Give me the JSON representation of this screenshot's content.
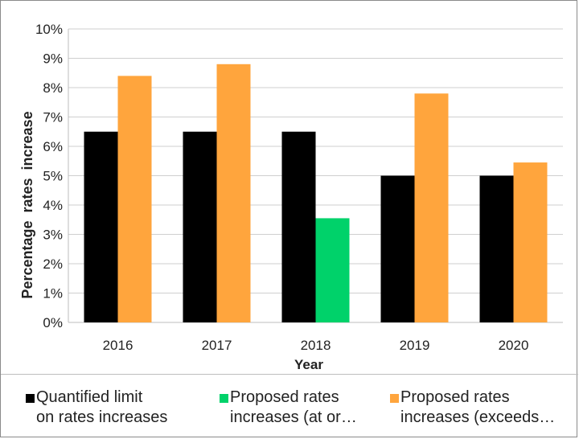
{
  "chart_data": {
    "type": "bar",
    "title": "",
    "xlabel": "Year",
    "ylabel": "Percentage  rates  increase",
    "categories": [
      "2016",
      "2017",
      "2018",
      "2019",
      "2020"
    ],
    "ylim": [
      0,
      10
    ],
    "yticks": [
      "0%",
      "1%",
      "2%",
      "3%",
      "4%",
      "5%",
      "6%",
      "7%",
      "8%",
      "9%",
      "10%"
    ],
    "grid": true,
    "legend_position": "bottom",
    "series": [
      {
        "name": "Quantified limit on rates increases",
        "color": "#000000",
        "values": [
          6.5,
          6.5,
          6.5,
          5.0,
          5.0
        ]
      },
      {
        "name": "Proposed rates increases (at or below limit)",
        "color": "#00d26a",
        "values": [
          null,
          null,
          3.55,
          null,
          null
        ]
      },
      {
        "name": "Proposed rates increases (exceeds limit)",
        "color": "#ffa53d",
        "values": [
          8.4,
          8.8,
          null,
          7.8,
          5.45
        ]
      }
    ]
  },
  "legend": [
    {
      "line1": "Quantified limit",
      "line2": "on rates increases",
      "color": "#000000"
    },
    {
      "line1": "Proposed rates",
      "line2": "increases (at or…",
      "color": "#00d26a"
    },
    {
      "line1": "Proposed rates",
      "line2": "increases (exceeds…",
      "color": "#ffa53d"
    }
  ]
}
